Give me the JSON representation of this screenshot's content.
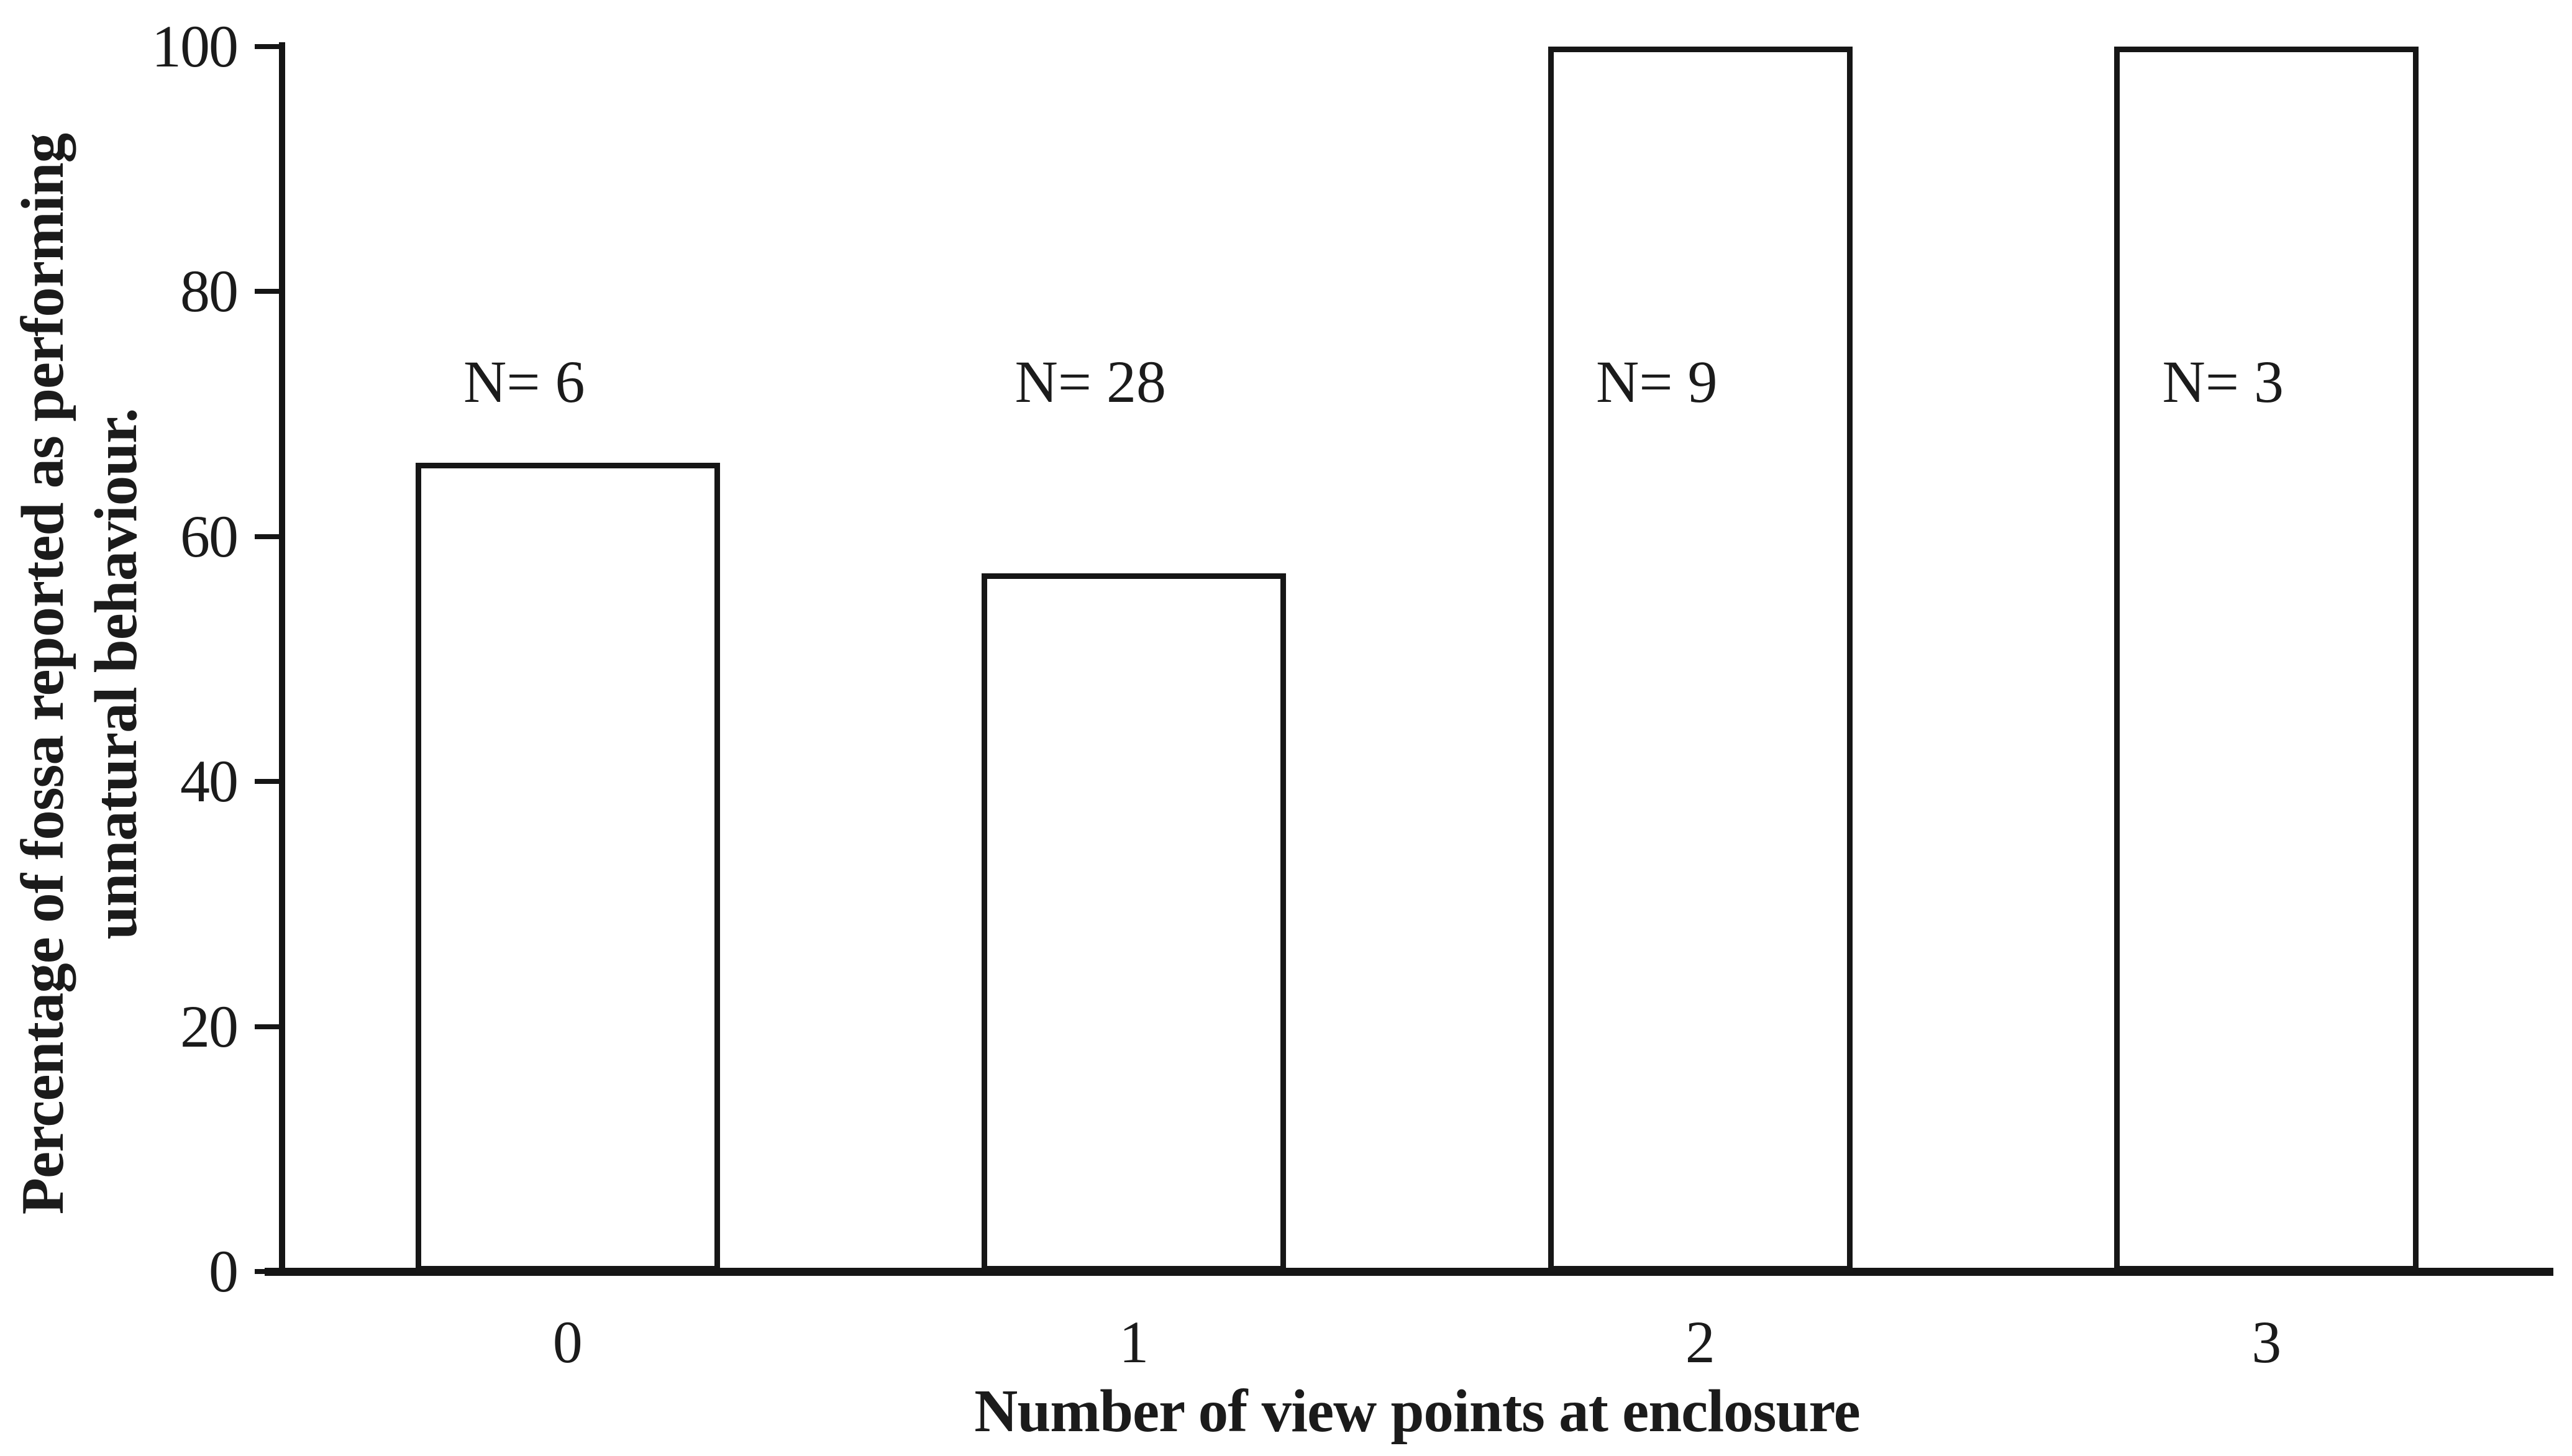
{
  "figure": {
    "background": "#ffffff",
    "ink_color": "#1b1b1b",
    "line_color": "#151515"
  },
  "chart_data": {
    "type": "bar",
    "title": "",
    "xlabel": "Number of view points at enclosure",
    "ylabel": "Percentage of fossa reported as performing unnatural behaviour.",
    "ylabel_lines": [
      "Percentage of fossa reported as performing",
      "unnatural behaviour."
    ],
    "categories": [
      "0",
      "1",
      "2",
      "3"
    ],
    "values": [
      66,
      57,
      100,
      100
    ],
    "bar_labels": [
      "N= 6",
      "N= 28",
      "N= 9",
      "N= 3"
    ],
    "sample_sizes": [
      6,
      28,
      9,
      3
    ],
    "ylim": [
      0,
      100
    ],
    "yticks": [
      0,
      20,
      40,
      60,
      80,
      100
    ],
    "ytick_labels": [
      "0",
      "20",
      "40",
      "60",
      "80",
      "100"
    ],
    "grid": false,
    "legend": "none",
    "bar_fill": "#ffffff",
    "bar_border": "#161616"
  }
}
